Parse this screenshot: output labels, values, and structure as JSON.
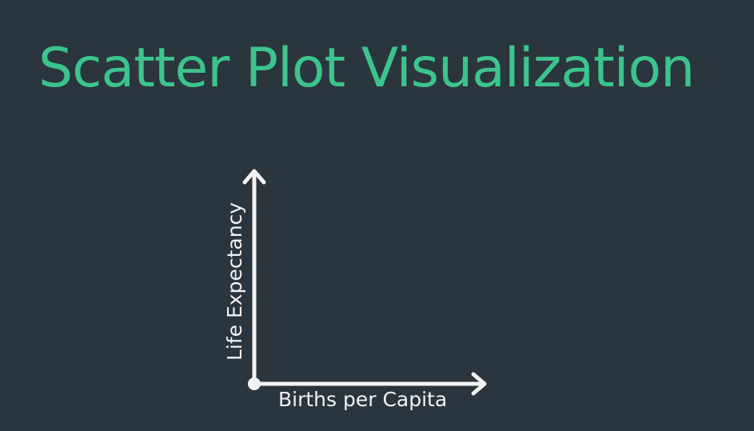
{
  "slide": {
    "title": "Scatter Plot Visualization"
  },
  "colors": {
    "background": "#2b353e",
    "title": "#3cc48e",
    "axis": "#f2f2f2"
  },
  "chart_data": {
    "type": "scatter",
    "title": "Scatter Plot Visualization",
    "xlabel": "Births per Capita",
    "ylabel": "Life Expectancy",
    "series": [],
    "grid": false,
    "ticks": false
  }
}
